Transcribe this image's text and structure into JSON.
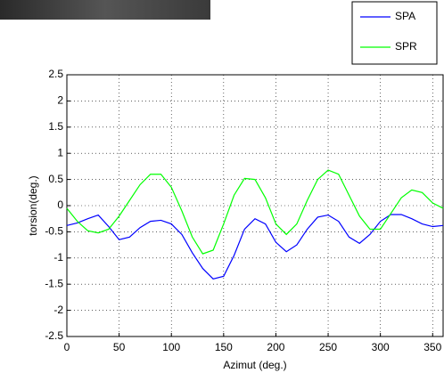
{
  "chart_data": {
    "type": "line",
    "xlabel": "Azimut (deg.)",
    "ylabel": "torsion(deg.)",
    "x": [
      0,
      10,
      20,
      30,
      40,
      50,
      60,
      70,
      80,
      90,
      100,
      110,
      120,
      130,
      140,
      150,
      160,
      170,
      180,
      190,
      200,
      210,
      220,
      230,
      240,
      250,
      260,
      270,
      280,
      290,
      300,
      310,
      320,
      330,
      340,
      350,
      360
    ],
    "series": [
      {
        "name": "SPA",
        "color": "#0000ff",
        "values": [
          -0.38,
          -0.33,
          -0.25,
          -0.18,
          -0.4,
          -0.65,
          -0.6,
          -0.42,
          -0.3,
          -0.28,
          -0.35,
          -0.55,
          -0.9,
          -1.2,
          -1.4,
          -1.35,
          -0.95,
          -0.45,
          -0.25,
          -0.35,
          -0.7,
          -0.88,
          -0.75,
          -0.45,
          -0.22,
          -0.18,
          -0.3,
          -0.6,
          -0.72,
          -0.55,
          -0.3,
          -0.17,
          -0.17,
          -0.25,
          -0.35,
          -0.4,
          -0.38
        ]
      },
      {
        "name": "SPR",
        "color": "#00ff00",
        "values": [
          -0.05,
          -0.3,
          -0.48,
          -0.52,
          -0.45,
          -0.2,
          0.1,
          0.4,
          0.6,
          0.6,
          0.35,
          -0.1,
          -0.6,
          -0.92,
          -0.85,
          -0.35,
          0.2,
          0.52,
          0.5,
          0.15,
          -0.35,
          -0.55,
          -0.35,
          0.1,
          0.5,
          0.68,
          0.6,
          0.2,
          -0.2,
          -0.45,
          -0.45,
          -0.15,
          0.15,
          0.3,
          0.25,
          0.05,
          -0.05
        ]
      }
    ],
    "xlim": [
      0,
      360
    ],
    "xticks": [
      0,
      50,
      100,
      150,
      200,
      250,
      300,
      350
    ],
    "ylim": [
      -2.5,
      2.5
    ],
    "yticks": [
      -2.5,
      -2,
      -1.5,
      -1,
      -0.5,
      0,
      0.5,
      1,
      1.5,
      2,
      2.5
    ],
    "grid": true
  }
}
